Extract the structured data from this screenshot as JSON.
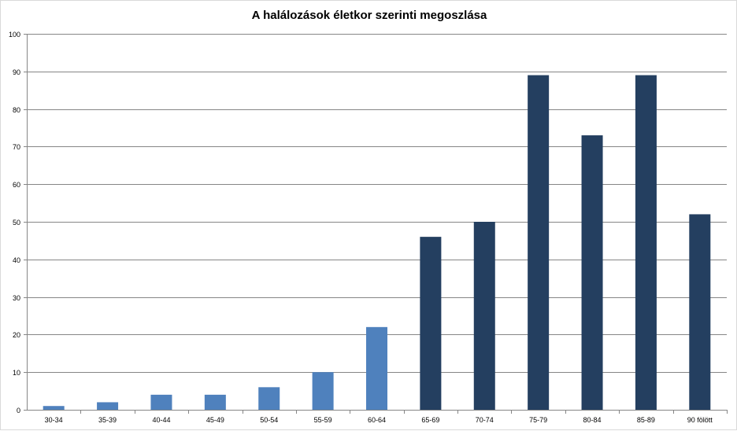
{
  "chart_data": {
    "type": "bar",
    "title": "A halálozások életkor szerinti megoszlása",
    "categories": [
      "30-34",
      "35-39",
      "40-44",
      "45-49",
      "50-54",
      "55-59",
      "60-64",
      "65-69",
      "70-74",
      "75-79",
      "80-84",
      "85-89",
      "90 fölött"
    ],
    "values": [
      1,
      2,
      4,
      4,
      6,
      10,
      22,
      46,
      50,
      89,
      73,
      89,
      52
    ],
    "ylim": [
      0,
      100
    ],
    "yticks": [
      0,
      10,
      20,
      30,
      40,
      50,
      60,
      70,
      80,
      90,
      100
    ],
    "grid": true,
    "colors": {
      "light": "#4f81bd",
      "dark": "#243f60",
      "gridline": "#868686",
      "axis": "#868686"
    },
    "bar_colors": [
      "light",
      "light",
      "light",
      "light",
      "light",
      "light",
      "light",
      "dark",
      "dark",
      "dark",
      "dark",
      "dark",
      "dark"
    ]
  }
}
